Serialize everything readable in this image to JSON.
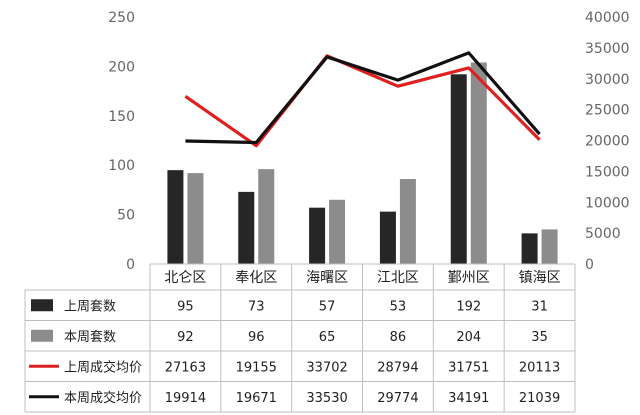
{
  "chart_data": {
    "type": "bar",
    "categories": [
      "北仑区",
      "奉化区",
      "海曙区",
      "江北区",
      "鄞州区",
      "镇海区"
    ],
    "series": [
      {
        "name": "上周套数",
        "kind": "bar",
        "axis": "left",
        "color": "#262626",
        "values": [
          95,
          73,
          57,
          53,
          192,
          31
        ]
      },
      {
        "name": "本周套数",
        "kind": "bar",
        "axis": "left",
        "color": "#8c8c8c",
        "values": [
          92,
          96,
          65,
          86,
          204,
          35
        ]
      },
      {
        "name": "上周成交均价",
        "kind": "line",
        "axis": "right",
        "color": "#e02020",
        "values": [
          27163,
          19155,
          33702,
          28794,
          31751,
          20113
        ]
      },
      {
        "name": "本周成交均价",
        "kind": "line",
        "axis": "right",
        "color": "#111111",
        "values": [
          19914,
          19671,
          33530,
          29774,
          34191,
          21039
        ]
      }
    ],
    "ylim_left": [
      0,
      250
    ],
    "yticks_left": [
      0,
      50,
      100,
      150,
      200,
      250
    ],
    "ylim_right": [
      0,
      40000
    ],
    "yticks_right": [
      0,
      5000,
      10000,
      15000,
      20000,
      25000,
      30000,
      35000,
      40000
    ],
    "data_table": true,
    "grid": false
  }
}
